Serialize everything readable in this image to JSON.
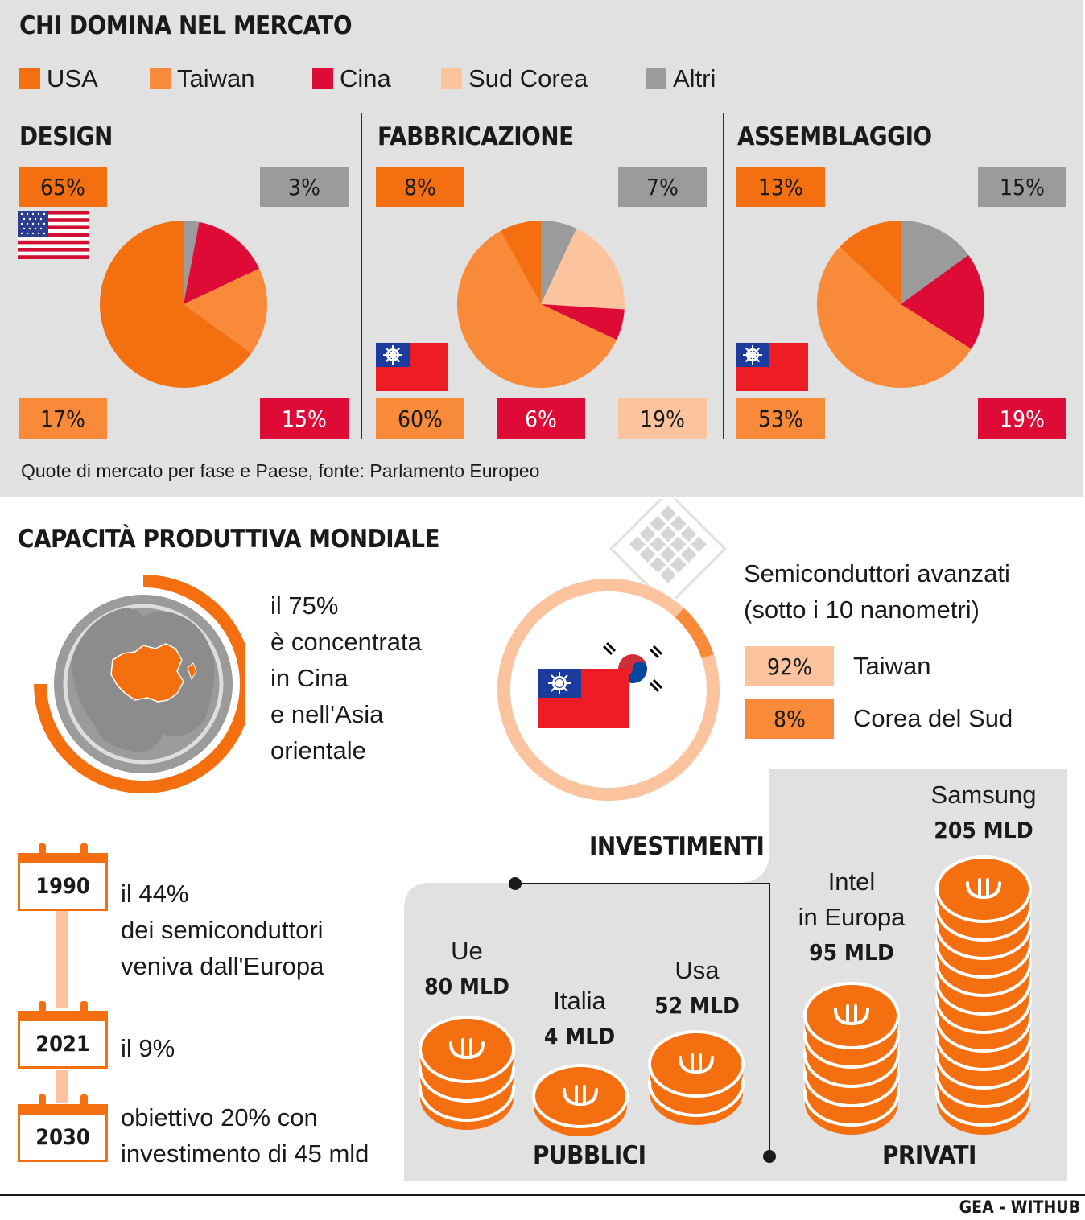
{
  "market": {
    "title": "CHI DOMINA NEL MERCATO",
    "legend": [
      {
        "label": "USA",
        "color": "#f36f0f"
      },
      {
        "label": "Taiwan",
        "color": "#f88a3a"
      },
      {
        "label": "Cina",
        "color": "#df0b37"
      },
      {
        "label": "Sud Corea",
        "color": "#fcc39f"
      },
      {
        "label": "Altri",
        "color": "#9b9b9b"
      }
    ],
    "caption": "Quote di mercato per fase e Paese, fonte: Parlamento Europeo"
  },
  "chart_data": [
    {
      "type": "pie",
      "title": "DESIGN",
      "slices": [
        {
          "name": "USA",
          "value": 65,
          "label": "65%"
        },
        {
          "name": "Taiwan",
          "value": 17,
          "label": "17%"
        },
        {
          "name": "Cina",
          "value": 15,
          "label": "15%"
        },
        {
          "name": "Altri",
          "value": 3,
          "label": "3%"
        }
      ]
    },
    {
      "type": "pie",
      "title": "FABBRICAZIONE",
      "slices": [
        {
          "name": "Taiwan",
          "value": 60,
          "label": "60%"
        },
        {
          "name": "USA",
          "value": 8,
          "label": "8%"
        },
        {
          "name": "Altri",
          "value": 7,
          "label": "7%"
        },
        {
          "name": "Sud Corea",
          "value": 19,
          "label": "19%"
        },
        {
          "name": "Cina",
          "value": 6,
          "label": "6%"
        }
      ]
    },
    {
      "type": "pie",
      "title": "ASSEMBLAGGIO",
      "slices": [
        {
          "name": "Taiwan",
          "value": 53,
          "label": "53%"
        },
        {
          "name": "USA",
          "value": 13,
          "label": "13%"
        },
        {
          "name": "Altri",
          "value": 15,
          "label": "15%"
        },
        {
          "name": "Cina",
          "value": 19,
          "label": "19%"
        }
      ]
    }
  ],
  "capacity": {
    "title": "CAPACITÀ PRODUTTIVA MONDIALE",
    "ring_share": 75,
    "text": [
      "il 75%",
      "è concentrata",
      "in Cina",
      "e nell'Asia",
      "orientale"
    ]
  },
  "advanced": {
    "title_lines": [
      "Semiconduttori avanzati",
      "(sotto i 10 nanometri)"
    ],
    "rows": [
      {
        "value": "92%",
        "country": "Taiwan",
        "share": 92
      },
      {
        "value": "8%",
        "country": "Corea del Sud",
        "share": 8
      }
    ]
  },
  "timeline": [
    {
      "year": "1990",
      "lines": [
        "il 44%",
        "dei semiconduttori",
        "veniva dall'Europa"
      ]
    },
    {
      "year": "2021",
      "lines": [
        "il 9%"
      ]
    },
    {
      "year": "2030",
      "lines": [
        "obiettivo 20% con",
        "investimento di 45 mld"
      ]
    }
  ],
  "investments": {
    "title": "INVESTIMENTI",
    "public_label": "PUBBLICI",
    "private_label": "PRIVATI",
    "public": [
      {
        "name": "Ue",
        "value": "80 MLD"
      },
      {
        "name": "Italia",
        "value": "4 MLD"
      },
      {
        "name": "Usa",
        "value": "52 MLD"
      }
    ],
    "private": [
      {
        "name_lines": [
          "Intel",
          "in Europa"
        ],
        "value": "95 MLD"
      },
      {
        "name": "Samsung",
        "value": "205 MLD"
      }
    ]
  },
  "credit": "GEA - WITHUB"
}
